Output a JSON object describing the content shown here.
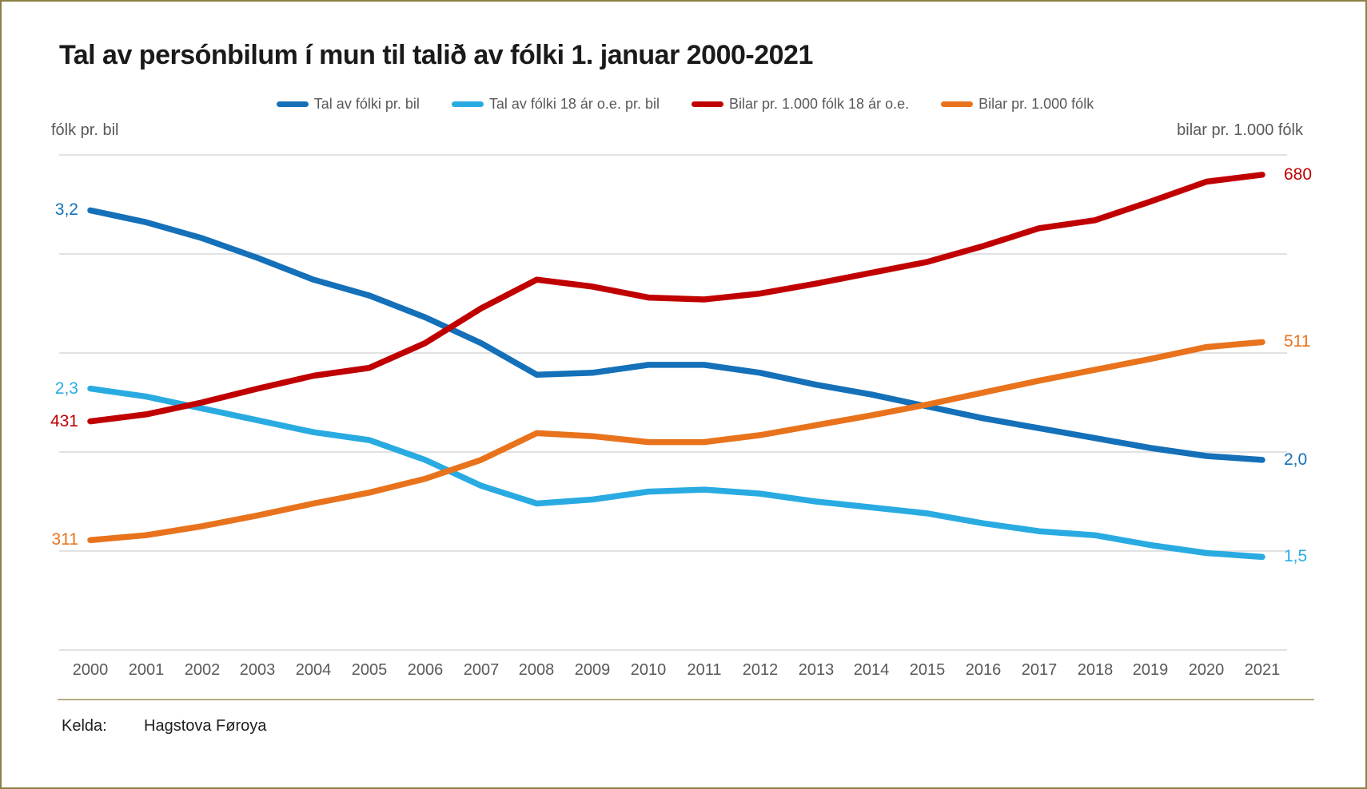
{
  "title": "Tal av persónbilum í mun til talið av fólki 1. januar 2000-2021",
  "axes": {
    "left_title": "fólk pr. bil",
    "right_title": "bilar pr. 1.000 fólk"
  },
  "source": {
    "label": "Kelda:",
    "value": "Hagstova Føroya"
  },
  "colors": {
    "dark_blue": "#1470B8",
    "light_blue": "#29ABE2",
    "dark_red": "#C00000",
    "orange": "#E8731C",
    "grid": "#D9D9D9",
    "axis_text": "#595959",
    "title_text": "#1A1A1A",
    "page_border": "#8C8144",
    "source_rule": "#B9AC80"
  },
  "chart_data": {
    "type": "line",
    "title": "Tal av persónbilum í mun til talið av fólki 1. januar 2000-2021",
    "legend_position": "top",
    "grid": "horizontal",
    "x": [
      2000,
      2001,
      2002,
      2003,
      2004,
      2005,
      2006,
      2007,
      2008,
      2009,
      2010,
      2011,
      2012,
      2013,
      2014,
      2015,
      2016,
      2017,
      2018,
      2019,
      2020,
      2021
    ],
    "axes": {
      "left": {
        "title": "fólk pr. bil",
        "min": 1.0,
        "max": 3.5,
        "gridline_step": 0.5
      },
      "right": {
        "title": "bilar pr. 1.000 fólk",
        "min": 200,
        "max": 700,
        "gridline_step": 100
      }
    },
    "series": [
      {
        "name": "Tal av fólki pr. bil",
        "axis": "left",
        "color": "#1470B8",
        "start_label": "3,2",
        "end_label": "2,0",
        "values": [
          3.22,
          3.16,
          3.08,
          2.98,
          2.87,
          2.79,
          2.68,
          2.55,
          2.39,
          2.4,
          2.44,
          2.44,
          2.4,
          2.34,
          2.29,
          2.23,
          2.17,
          2.12,
          2.07,
          2.02,
          1.98,
          1.96
        ]
      },
      {
        "name": "Tal av fólki 18 ár o.e. pr. bil",
        "axis": "left",
        "color": "#29ABE2",
        "start_label": "2,3",
        "end_label": "1,5",
        "values": [
          2.32,
          2.28,
          2.22,
          2.16,
          2.1,
          2.06,
          1.96,
          1.83,
          1.74,
          1.76,
          1.8,
          1.81,
          1.79,
          1.75,
          1.72,
          1.69,
          1.64,
          1.6,
          1.58,
          1.53,
          1.49,
          1.47
        ]
      },
      {
        "name": "Bilar pr. 1.000 fólk 18 ár o.e.",
        "axis": "right",
        "color": "#C00000",
        "start_label": "431",
        "end_label": "680",
        "values": [
          431,
          438,
          450,
          464,
          477,
          485,
          510,
          545,
          574,
          567,
          556,
          554,
          560,
          570,
          581,
          592,
          608,
          626,
          634,
          653,
          673,
          680
        ]
      },
      {
        "name": "Bilar pr. 1.000 fólk",
        "axis": "right",
        "color": "#E8731C",
        "start_label": "311",
        "end_label": "511",
        "values": [
          311,
          316,
          325,
          336,
          348,
          359,
          373,
          392,
          419,
          416,
          410,
          410,
          417,
          427,
          437,
          448,
          460,
          472,
          483,
          494,
          506,
          511
        ]
      }
    ]
  }
}
